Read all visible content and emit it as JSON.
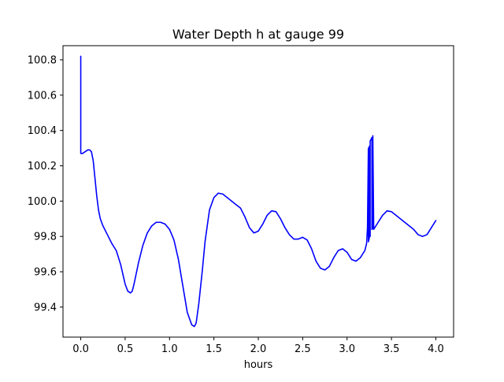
{
  "chart_data": {
    "type": "line",
    "title": "Water Depth h at gauge 99",
    "xlabel": "hours",
    "ylabel": "",
    "xlim": [
      -0.2,
      4.2
    ],
    "ylim": [
      99.23,
      100.88
    ],
    "xticks": [
      0.0,
      0.5,
      1.0,
      1.5,
      2.0,
      2.5,
      3.0,
      3.5,
      4.0
    ],
    "xtick_labels": [
      "0.0",
      "0.5",
      "1.0",
      "1.5",
      "2.0",
      "2.5",
      "3.0",
      "3.5",
      "4.0"
    ],
    "yticks": [
      99.4,
      99.6,
      99.8,
      100.0,
      100.2,
      100.4,
      100.6,
      100.8
    ],
    "ytick_labels": [
      "99.4",
      "99.6",
      "99.8",
      "100.0",
      "100.2",
      "100.4",
      "100.6",
      "100.8"
    ],
    "grid": false,
    "legend": "none",
    "series": [
      {
        "color": "#0000ff",
        "x": [
          0.0,
          0.0,
          0.0,
          0.02,
          0.05,
          0.08,
          0.1,
          0.12,
          0.14,
          0.16,
          0.18,
          0.2,
          0.22,
          0.25,
          0.3,
          0.35,
          0.4,
          0.45,
          0.5,
          0.53,
          0.56,
          0.58,
          0.6,
          0.65,
          0.7,
          0.75,
          0.8,
          0.85,
          0.9,
          0.95,
          1.0,
          1.05,
          1.1,
          1.15,
          1.2,
          1.25,
          1.28,
          1.3,
          1.33,
          1.37,
          1.4,
          1.45,
          1.5,
          1.55,
          1.6,
          1.65,
          1.7,
          1.75,
          1.8,
          1.85,
          1.9,
          1.95,
          2.0,
          2.05,
          2.1,
          2.15,
          2.2,
          2.25,
          2.3,
          2.35,
          2.4,
          2.45,
          2.5,
          2.55,
          2.6,
          2.65,
          2.7,
          2.75,
          2.8,
          2.85,
          2.9,
          2.95,
          3.0,
          3.05,
          3.1,
          3.15,
          3.2,
          3.22,
          3.23,
          3.24,
          3.24,
          3.25,
          3.25,
          3.26,
          3.26,
          3.28,
          3.28,
          3.29,
          3.29,
          3.3,
          3.35,
          3.4,
          3.45,
          3.5,
          3.55,
          3.6,
          3.65,
          3.7,
          3.75,
          3.8,
          3.85,
          3.9,
          3.95,
          4.0
        ],
        "y": [
          100.27,
          100.82,
          100.27,
          100.27,
          100.28,
          100.29,
          100.29,
          100.28,
          100.23,
          100.13,
          100.03,
          99.95,
          99.9,
          99.86,
          99.81,
          99.76,
          99.72,
          99.64,
          99.53,
          99.49,
          99.48,
          99.49,
          99.53,
          99.65,
          99.75,
          99.82,
          99.86,
          99.88,
          99.88,
          99.87,
          99.84,
          99.78,
          99.67,
          99.52,
          99.37,
          99.3,
          99.29,
          99.31,
          99.42,
          99.61,
          99.77,
          99.95,
          100.02,
          100.045,
          100.04,
          100.02,
          100.0,
          99.98,
          99.96,
          99.91,
          99.85,
          99.82,
          99.83,
          99.87,
          99.92,
          99.945,
          99.94,
          99.9,
          99.85,
          99.81,
          99.785,
          99.785,
          99.795,
          99.78,
          99.73,
          99.66,
          99.62,
          99.61,
          99.63,
          99.68,
          99.72,
          99.73,
          99.71,
          99.67,
          99.66,
          99.68,
          99.72,
          99.76,
          99.85,
          100.3,
          99.77,
          99.79,
          100.31,
          99.8,
          100.34,
          100.36,
          99.84,
          99.85,
          100.37,
          99.84,
          99.88,
          99.92,
          99.945,
          99.94,
          99.92,
          99.9,
          99.88,
          99.86,
          99.84,
          99.81,
          99.8,
          99.81,
          99.85,
          99.89
        ]
      }
    ]
  }
}
